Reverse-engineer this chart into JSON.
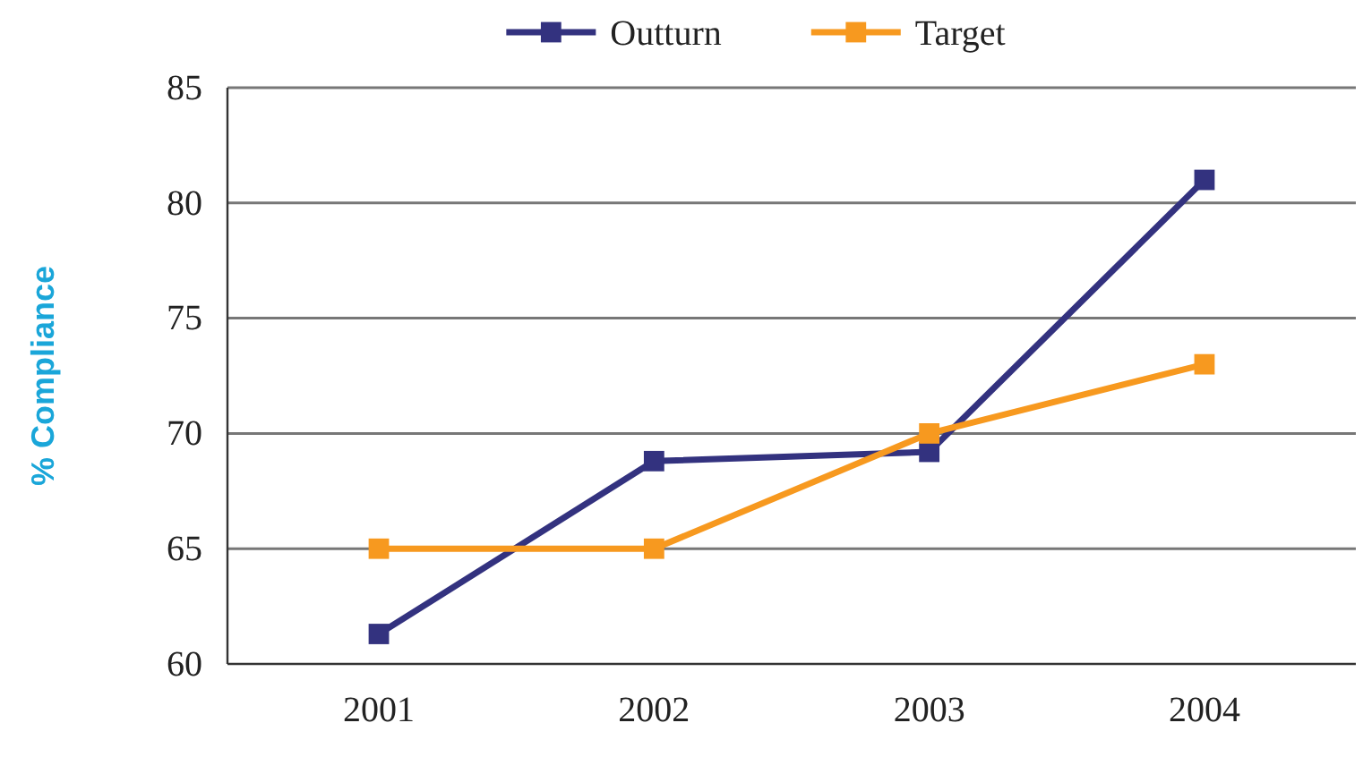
{
  "chart_data": {
    "type": "line",
    "ylabel": "% Compliance",
    "categories": [
      "2001",
      "2002",
      "2003",
      "2004"
    ],
    "series": [
      {
        "name": "Outturn",
        "color": "#33327f",
        "values": [
          61.3,
          68.8,
          69.2,
          81.0
        ]
      },
      {
        "name": "Target",
        "color": "#f7991f",
        "values": [
          65,
          65,
          70,
          73
        ]
      }
    ],
    "ylim": [
      60,
      85
    ],
    "yticks": [
      60,
      65,
      70,
      75,
      80,
      85
    ],
    "grid": "y",
    "legend": "top",
    "marker": "square",
    "line_style": "solid"
  }
}
